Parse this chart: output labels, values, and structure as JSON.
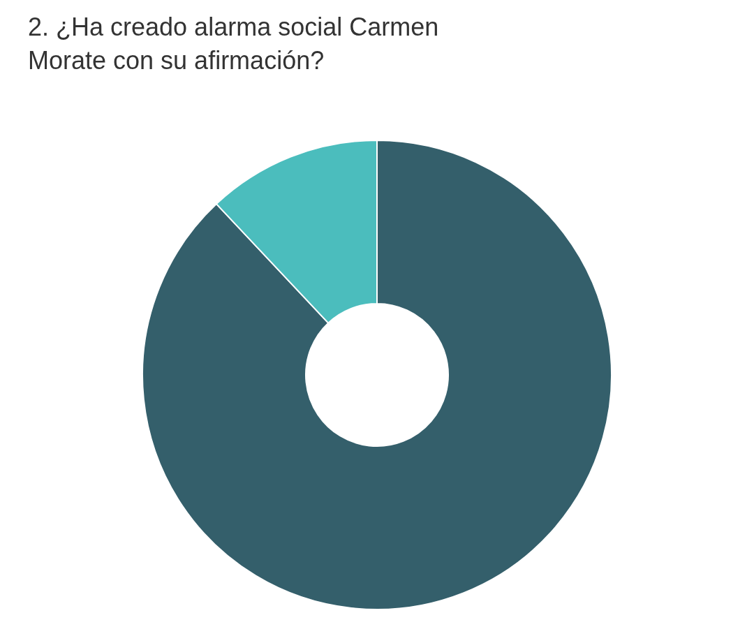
{
  "chart_data": {
    "type": "donut",
    "title": "2. ¿Ha creado alarma social Carmen Morate con su afirmación?",
    "categories": [
      null,
      null
    ],
    "values": [
      88,
      12
    ],
    "colors": [
      "#345f6b",
      "#4bbdbd"
    ],
    "legend": false
  }
}
